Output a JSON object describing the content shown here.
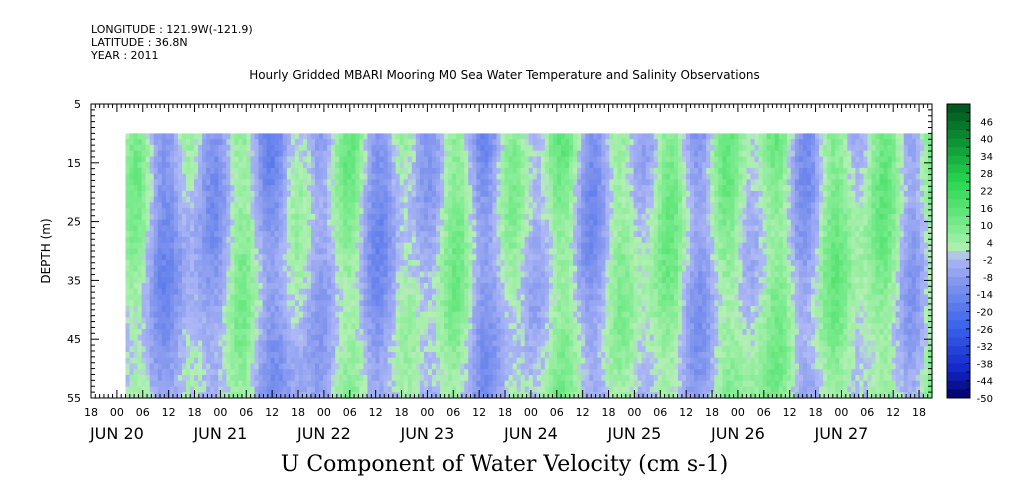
{
  "header": {
    "longitude": "LONGITUDE : 121.9W(-121.9)",
    "latitude": "LATITUDE : 36.8N",
    "year": "YEAR : 2011"
  },
  "chart_data": {
    "type": "heatmap",
    "title": "Hourly Gridded MBARI Mooring M0 Sea Water Temperature and Salinity Observations",
    "bottom_title": "U Component of Water Velocity (cm s-1)",
    "ylabel": "DEPTH (m)",
    "ylim": [
      55,
      5
    ],
    "yticks": [
      5,
      15,
      25,
      35,
      45,
      55
    ],
    "x_range_days": [
      "2011-06-19T18:00",
      "2011-06-27T21:00"
    ],
    "data_start": "2011-06-20T02:00",
    "data_depth_range": [
      10,
      55
    ],
    "hour_ticks": [
      "18",
      "00",
      "06",
      "12",
      "18",
      "00",
      "06",
      "12",
      "18",
      "00",
      "06",
      "12",
      "18",
      "00",
      "06",
      "12",
      "18",
      "00",
      "06",
      "12",
      "18",
      "00",
      "06",
      "12",
      "18",
      "00",
      "06",
      "12",
      "18",
      "00",
      "06",
      "12",
      "18"
    ],
    "day_labels": [
      "JUN 20",
      "JUN 21",
      "JUN 22",
      "JUN 23",
      "JUN 24",
      "JUN 25",
      "JUN 26",
      "JUN 27"
    ],
    "colorbar": {
      "labels": [
        46,
        40,
        34,
        28,
        22,
        16,
        10,
        4,
        -2,
        -8,
        -14,
        -20,
        -26,
        -32,
        -38,
        -44,
        -50
      ],
      "min": -50,
      "max": 52,
      "step": 3
    },
    "colors": {
      "strong_negative": "#000066",
      "negative": "#3a5fe6",
      "near_zero_negative": "#a8b4f0",
      "near_zero_positive": "#b4f0b4",
      "positive": "#33dd55",
      "strong_positive": "#005522"
    }
  }
}
